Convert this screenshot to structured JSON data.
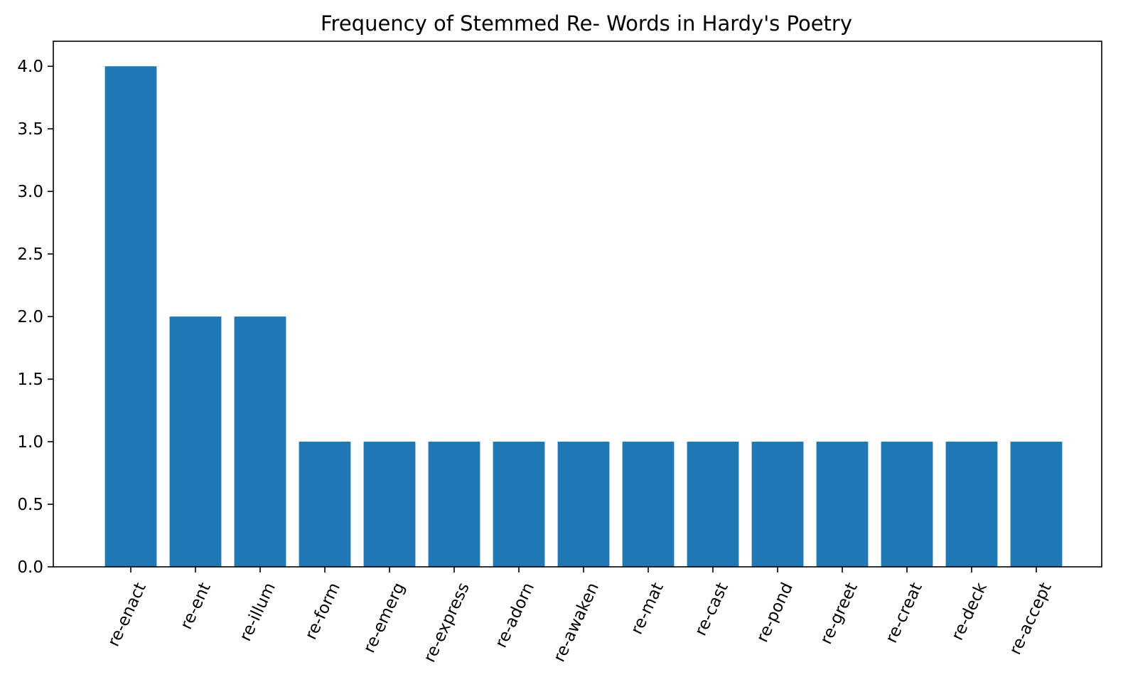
{
  "chart_data": {
    "type": "bar",
    "title": "Frequency of Stemmed Re- Words in Hardy's Poetry",
    "xlabel": "",
    "ylabel": "",
    "categories": [
      "re-enact",
      "re-ent",
      "re-illum",
      "re-form",
      "re-emerg",
      "re-express",
      "re-adorn",
      "re-awaken",
      "re-mat",
      "re-cast",
      "re-pond",
      "re-greet",
      "re-creat",
      "re-deck",
      "re-accept"
    ],
    "values": [
      4,
      2,
      2,
      1,
      1,
      1,
      1,
      1,
      1,
      1,
      1,
      1,
      1,
      1,
      1
    ],
    "ylim": [
      0,
      4.2
    ],
    "yticks": [
      0.0,
      0.5,
      1.0,
      1.5,
      2.0,
      2.5,
      3.0,
      3.5,
      4.0
    ],
    "ytick_labels": [
      "0.0",
      "0.5",
      "1.0",
      "1.5",
      "2.0",
      "2.5",
      "3.0",
      "3.5",
      "4.0"
    ],
    "grid": false,
    "bar_color": "#1f77b4",
    "x_tick_rotation": "diagonal"
  }
}
